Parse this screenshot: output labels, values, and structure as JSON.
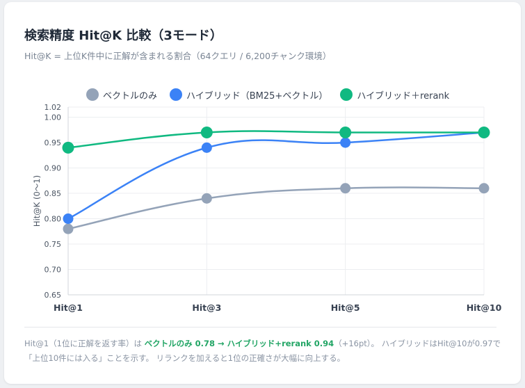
{
  "title": "検索精度 Hit@K 比較（3モード）",
  "subtitle": "Hit@K = 上位K件中に正解が含まれる割合（64クエリ / 6,200チャンク環境）",
  "chart_data": {
    "type": "line",
    "categories": [
      "Hit@1",
      "Hit@3",
      "Hit@5",
      "Hit@10"
    ],
    "ylabel": "Hit@K (0〜1)",
    "ylim": [
      0.65,
      1.02
    ],
    "yticks": [
      "0.65",
      "0.70",
      "0.75",
      "0.80",
      "0.85",
      "0.90",
      "0.95",
      "1.00",
      "1.02"
    ],
    "grid": true,
    "legend_position": "top",
    "series": [
      {
        "name": "ベクトルのみ",
        "color": "#94a3b8",
        "values": [
          0.78,
          0.84,
          0.86,
          0.86
        ]
      },
      {
        "name": "ハイブリッド（BM25+ベクトル）",
        "color": "#3b82f6",
        "values": [
          0.8,
          0.94,
          0.95,
          0.97
        ]
      },
      {
        "name": "ハイブリッド＋rerank",
        "color": "#10b981",
        "values": [
          0.94,
          0.97,
          0.97,
          0.97
        ]
      }
    ]
  },
  "footnote": {
    "part1": "Hit@1（1位に正解を返す率）は ",
    "highlight": "ベクトルのみ 0.78 → ハイブリッド+rerank 0.94",
    "part2": "（+16pt）。 ハイブリッドはHit@10が0.97で「上位10件には入る」ことを示す。 リランクを加えると1位の正確さが大幅に向上する。"
  }
}
